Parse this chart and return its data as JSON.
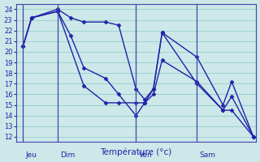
{
  "xlabel": "Température (°c)",
  "bg_color": "#cce8e8",
  "line_color": "#2222aa",
  "grid_color": "#99cccc",
  "spine_color": "#4444aa",
  "ylim": [
    11.5,
    24.5
  ],
  "yticks": [
    12,
    13,
    14,
    15,
    16,
    17,
    18,
    19,
    20,
    21,
    22,
    23,
    24
  ],
  "xlim": [
    -0.3,
    27.3
  ],
  "day_labels": [
    "Jeu",
    "Dim",
    "Ven",
    "Sam"
  ],
  "day_positions": [
    0.5,
    4.5,
    13.5,
    20.5
  ],
  "series1": {
    "x": [
      0.5,
      1.5,
      4.5,
      6.0,
      7.5,
      10.0,
      11.5,
      13.5,
      14.5,
      15.5,
      16.5,
      20.5,
      23.5,
      24.5,
      27.0
    ],
    "y": [
      20.5,
      23.2,
      24.0,
      23.2,
      22.8,
      22.8,
      22.5,
      16.5,
      15.5,
      16.5,
      21.8,
      17.0,
      14.5,
      14.5,
      12.0
    ]
  },
  "series2": {
    "x": [
      0.5,
      1.5,
      4.5,
      6.0,
      7.5,
      10.0,
      11.5,
      13.5,
      14.5,
      15.5,
      16.5,
      20.5,
      23.5,
      24.5,
      27.0
    ],
    "y": [
      20.5,
      23.2,
      23.8,
      21.5,
      18.5,
      17.5,
      16.0,
      14.0,
      15.2,
      16.5,
      21.8,
      19.5,
      15.0,
      17.2,
      12.0
    ]
  },
  "series3": {
    "x": [
      0.5,
      1.5,
      4.5,
      7.5,
      10.0,
      11.5,
      13.5,
      14.5,
      15.5,
      16.5,
      20.5,
      23.5,
      24.5,
      27.0
    ],
    "y": [
      20.5,
      23.2,
      23.8,
      16.8,
      15.2,
      15.2,
      15.2,
      15.2,
      16.0,
      19.2,
      17.2,
      14.5,
      15.8,
      12.0
    ]
  },
  "marker": "D",
  "marker_size": 2.5,
  "line_width": 1.0,
  "tick_fontsize": 6.0,
  "xlabel_fontsize": 7.5,
  "day_label_fontsize": 6.5
}
